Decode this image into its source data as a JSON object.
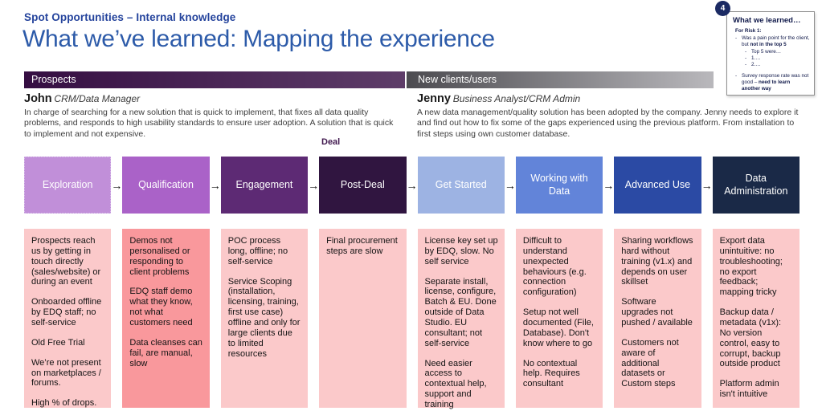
{
  "header": {
    "eyebrow": "Spot Opportunities – Internal knowledge",
    "title": "What we’ve learned: Mapping the experience"
  },
  "colors": {
    "eyebrow_blue": "#24439c",
    "title_blue": "#2d5ba9",
    "prospects_bar_from": "#350e42",
    "prospects_bar_to": "#5e3d69",
    "new_clients_bar_from": "#4c4b50",
    "new_clients_bar_to": "#b9b8bc",
    "deal_label": "#41194f",
    "badge_navy": "#1b2a63",
    "note_text_navy": "#10194a",
    "card_pink_light": "#fbc9ca",
    "card_pink_dark": "#f9989c"
  },
  "bars": {
    "prospects_label": "Prospects",
    "new_clients_label": "New clients/users"
  },
  "personas": {
    "left": {
      "name": "John",
      "role": "CRM/Data Manager",
      "description": "In charge of searching for a new solution that is quick to implement, that fixes all data quality problems, and responds to high usability standards to ensure user adoption. A solution that is quick to implement and not expensive."
    },
    "right": {
      "name": "Jenny",
      "role": "Business Analyst/CRM Admin",
      "description": "A new data management/quality solution has been adopted by the company. Jenny needs to explore it and find out how to fix some of the gaps experienced using the previous platform. From installation to first steps using own customer database."
    }
  },
  "deal_label": "Deal",
  "arrow_glyph": "→",
  "stages": [
    {
      "label": "Exploration",
      "color": "#c18fd9",
      "note_color": "#fbc9ca",
      "notes": [
        "Prospects reach us by getting in touch directly (sales/website) or during an event",
        "Onboarded offline by EDQ staff; no self-service",
        "Old Free Trial",
        "We’re not present on marketplaces / forums.",
        "High % of drops."
      ]
    },
    {
      "label": "Qualification",
      "color": "#aa62c8",
      "note_color": "#f9989c",
      "notes": [
        "Demos not personalised or responding to client problems",
        "EDQ staff demo what they know, not what customers need",
        "Data cleanses can fail, are manual, slow"
      ]
    },
    {
      "label": "Engagement",
      "color": "#5d2a74",
      "note_color": "#fbc9ca",
      "notes": [
        "POC process long, offline; no self-service",
        "Service Scoping (installation, licensing, training, first use case) offline and only for large clients due to limited resources"
      ]
    },
    {
      "label": "Post-Deal",
      "color": "#301540",
      "note_color": "#fbc9ca",
      "notes": [
        "Final procurement steps are slow"
      ]
    },
    {
      "label": "Get Started",
      "color": "#9db3e3",
      "note_color": "#fbc9ca",
      "notes": [
        "License key set up by EDQ, slow. No self service",
        "Separate install, license, configure, Batch & EU. Done outside of Data Studio. EU consultant; not self-service",
        "Need easier access to contextual help, support and training"
      ]
    },
    {
      "label": "Working with Data",
      "color": "#6284d9",
      "note_color": "#fbc9ca",
      "notes": [
        "Difficult to understand unexpected behaviours (e.g. connection configuration)",
        "Setup not well documented (File, Database). Don't know where to go",
        "No contextual help. Requires consultant"
      ]
    },
    {
      "label": "Advanced Use",
      "color": "#2b4aa4",
      "note_color": "#fbc9ca",
      "notes": [
        "Sharing workflows hard without training (v1.x) and depends on user skillset",
        "Software upgrades not pushed / available",
        "Customers not aware of additional datasets or Custom steps"
      ]
    },
    {
      "label": "Data Administration",
      "color": "#1a2947",
      "note_color": "#fbc9ca",
      "notes": [
        "Export data unintuitive: no troubleshooting; no export feedback; mapping tricky",
        "Backup data / metadata (v1x): No version control, easy to corrupt, backup outside product",
        "Platform admin isn't intuitive"
      ]
    }
  ],
  "note": {
    "badge": "4",
    "title": "What we learned…",
    "risk_label": "For Risk 1:",
    "bullet1_text": "Was a pain point for the client, but ",
    "bullet1_bold": "not in the top 5",
    "sub_bullets": [
      "Top 5 were…",
      "1….",
      "2…."
    ],
    "bullet2_text": "Survey response rate was not good – ",
    "bullet2_bold": "need to learn another way"
  }
}
